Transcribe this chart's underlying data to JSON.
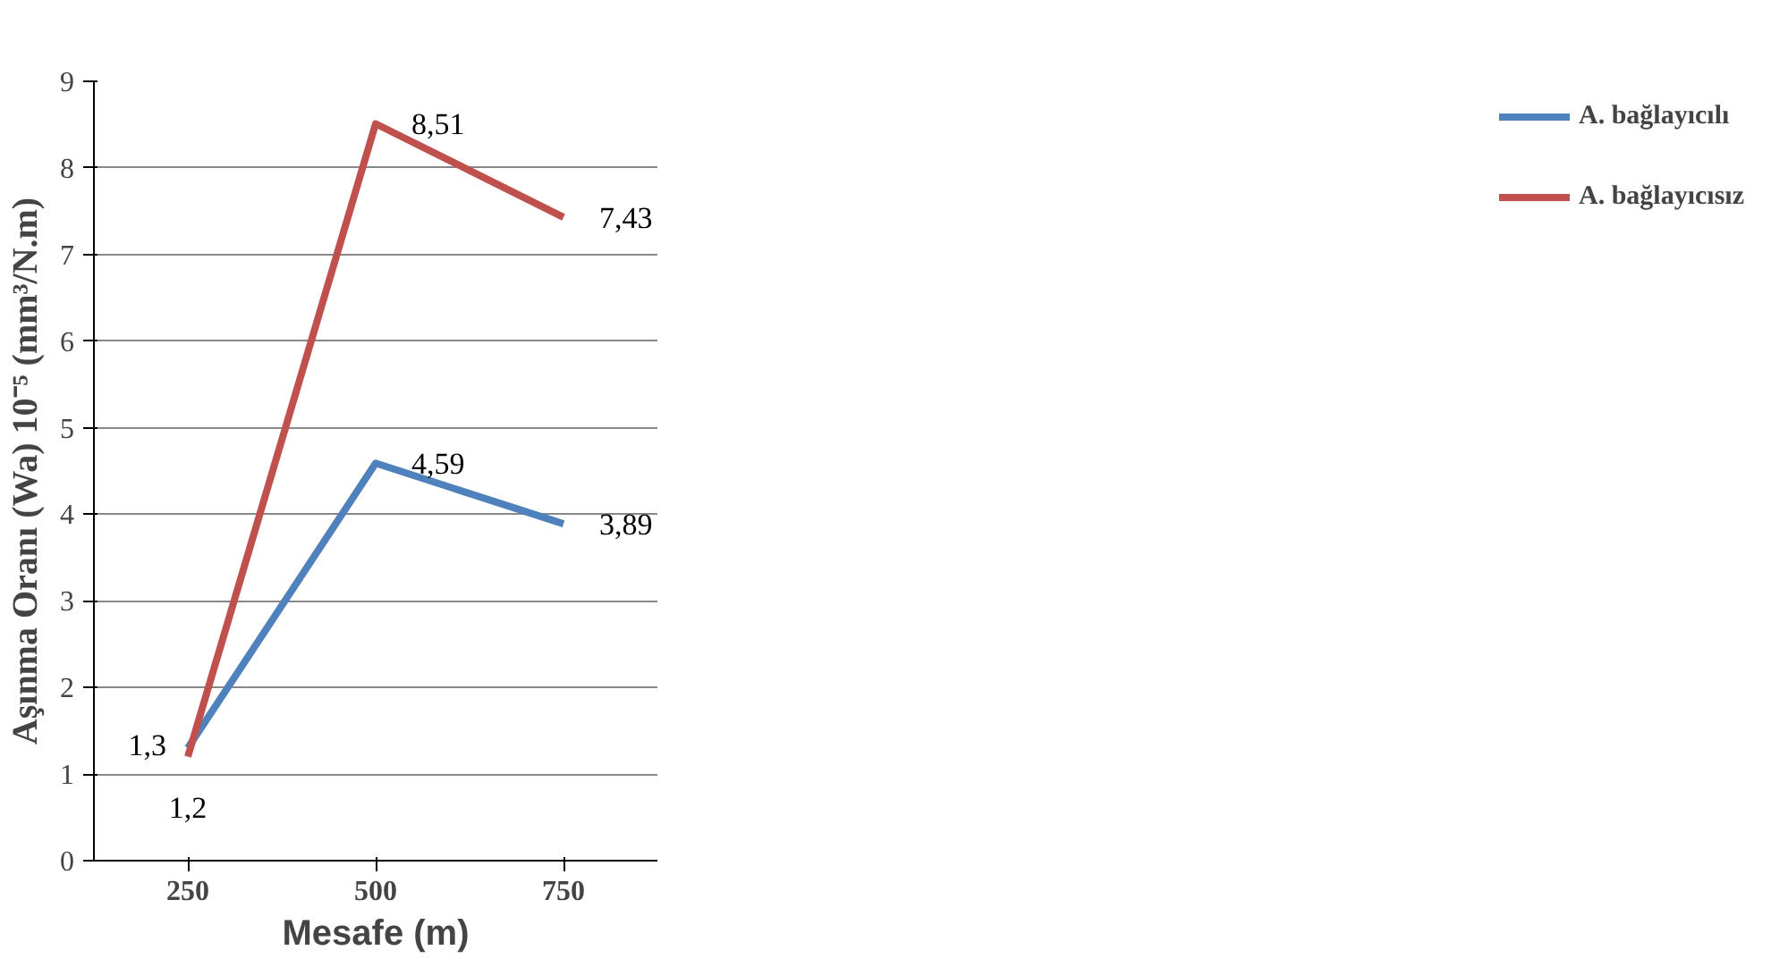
{
  "chart_data": {
    "type": "line",
    "xlabel": "Mesafe (m)",
    "ylabel": "Aşınma Oranı (Wa) 10⁻⁵ (mm³/N.m)",
    "categories": [
      "250",
      "500",
      "750"
    ],
    "series": [
      {
        "name": "A. bağlayıcılı",
        "color": "#4f81bd",
        "values": [
          1.3,
          4.59,
          3.89
        ],
        "value_labels": [
          "1,3",
          "4,59",
          "3,89"
        ]
      },
      {
        "name": "A. bağlayıcısız",
        "color": "#c0504d",
        "values": [
          1.2,
          8.51,
          7.43
        ],
        "value_labels": [
          "1,2",
          "8,51",
          "7,43"
        ]
      }
    ],
    "ylim": [
      0,
      9
    ],
    "yticks": [
      0,
      1,
      2,
      3,
      4,
      5,
      6,
      7,
      8,
      9
    ],
    "grid": "y",
    "legend": "right",
    "marker": "none",
    "line_style": "solid"
  }
}
